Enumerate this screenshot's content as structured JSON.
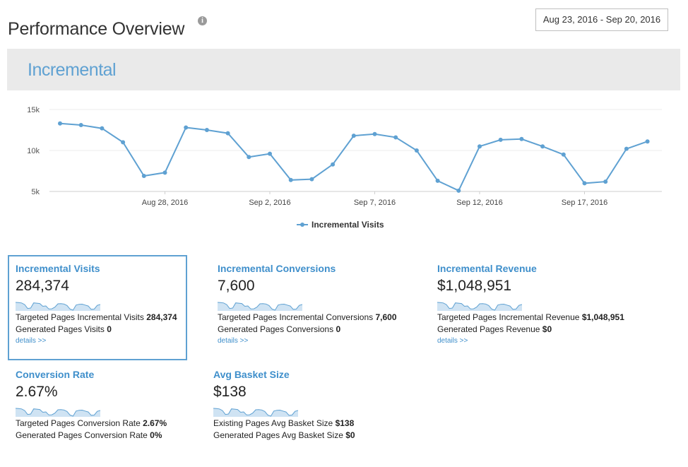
{
  "header": {
    "title": "Performance Overview",
    "info_icon": "info-icon",
    "date_range": "Aug 23, 2016 - Sep 20, 2016"
  },
  "panel": {
    "title": "Incremental"
  },
  "chart_data": {
    "type": "line",
    "title": "",
    "xlabel": "",
    "ylabel": "",
    "ylim": [
      5000,
      15000
    ],
    "y_ticks": [
      "15k",
      "10k",
      "5k"
    ],
    "x_tick_labels": [
      "Aug 28, 2016",
      "Sep 2, 2016",
      "Sep 7, 2016",
      "Sep 12, 2016",
      "Sep 17, 2016"
    ],
    "x_tick_dates": [
      "2016-08-28",
      "2016-09-02",
      "2016-09-07",
      "2016-09-12",
      "2016-09-17"
    ],
    "legend_position": "bottom-center",
    "grid": true,
    "color": "#5fa1d2",
    "series": [
      {
        "name": "Incremental Visits",
        "x": [
          "2016-08-23",
          "2016-08-24",
          "2016-08-25",
          "2016-08-26",
          "2016-08-27",
          "2016-08-28",
          "2016-08-29",
          "2016-08-30",
          "2016-08-31",
          "2016-09-01",
          "2016-09-02",
          "2016-09-03",
          "2016-09-04",
          "2016-09-05",
          "2016-09-06",
          "2016-09-07",
          "2016-09-08",
          "2016-09-09",
          "2016-09-10",
          "2016-09-11",
          "2016-09-12",
          "2016-09-13",
          "2016-09-14",
          "2016-09-15",
          "2016-09-16",
          "2016-09-17",
          "2016-09-18",
          "2016-09-19",
          "2016-09-20"
        ],
        "values": [
          13300,
          13100,
          12700,
          11000,
          6900,
          7300,
          12800,
          12500,
          12100,
          9200,
          9600,
          6400,
          6500,
          8300,
          11800,
          12000,
          11600,
          10000,
          6300,
          5100,
          10500,
          11300,
          11400,
          10500,
          9500,
          6000,
          6200,
          10200,
          11100
        ]
      }
    ]
  },
  "metrics": [
    {
      "title": "Incremental Visits",
      "value": "284,374",
      "line1_label": "Targeted Pages Incremental Visits",
      "line1_value": "284,374",
      "line2_label": "Generated Pages Visits",
      "line2_value": "0",
      "link": "details >>",
      "selected": true
    },
    {
      "title": "Incremental Conversions",
      "value": "7,600",
      "line1_label": "Targeted Pages Incremental Conversions",
      "line1_value": "7,600",
      "line2_label": "Generated Pages Conversions",
      "line2_value": "0",
      "link": "details >>"
    },
    {
      "title": "Incremental Revenue",
      "value": "$1,048,951",
      "line1_label": "Targeted Pages Incremental Revenue",
      "line1_value": "$1,048,951",
      "line2_label": "Generated Pages Revenue",
      "line2_value": "$0",
      "link": "details >>"
    },
    {
      "title": "Conversion Rate",
      "value": "2.67%",
      "line1_label": "Targeted Pages Conversion Rate",
      "line1_value": "2.67%",
      "line2_label": "Generated Pages Conversion Rate",
      "line2_value": "0%"
    },
    {
      "title": "Avg Basket Size",
      "value": "$138",
      "line1_label": "Existing Pages Avg Basket Size",
      "line1_value": "$138",
      "line2_label": "Generated Pages Avg Basket Size",
      "line2_value": "$0"
    }
  ]
}
